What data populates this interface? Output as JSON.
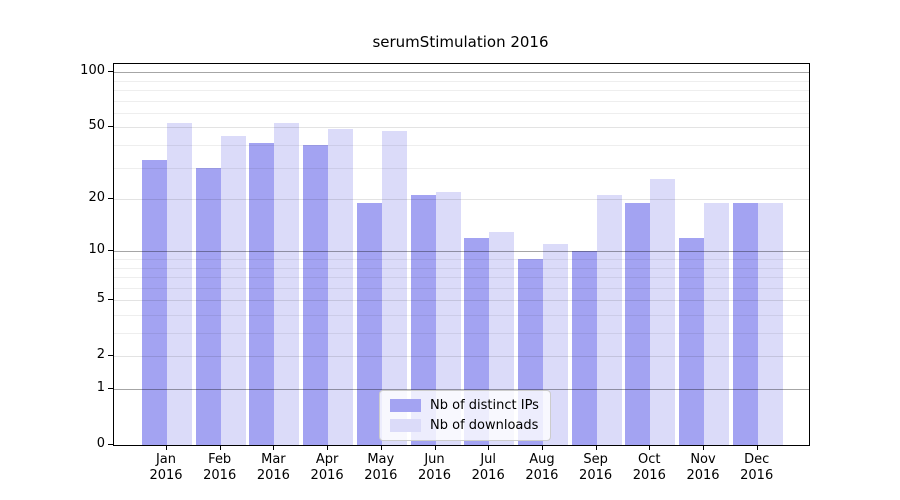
{
  "chart_data": {
    "type": "bar",
    "title": "serumStimulation 2016",
    "categories": [
      "Jan",
      "Feb",
      "Mar",
      "Apr",
      "May",
      "Jun",
      "Jul",
      "Aug",
      "Sep",
      "Oct",
      "Nov",
      "Dec"
    ],
    "x_year_label": "2016",
    "series": [
      {
        "name": "Nb of distinct IPs",
        "color": "#a3a3f2",
        "values": [
          33,
          30,
          41,
          40,
          19,
          21,
          12,
          9,
          10,
          19,
          12,
          19
        ]
      },
      {
        "name": "Nb of downloads",
        "color": "#dbdbf9",
        "values": [
          53,
          45,
          53,
          49,
          48,
          22,
          13,
          11,
          21,
          26,
          19,
          19
        ]
      }
    ],
    "y_axis": {
      "scale": "log1p",
      "tick_labels": [
        "100",
        "50",
        "20",
        "10",
        "5",
        "2",
        "1",
        "0"
      ],
      "tick_values": [
        100,
        50,
        20,
        10,
        5,
        2,
        1,
        0
      ],
      "major_gridlines": [
        1,
        10,
        100
      ],
      "sub_gridlines": [
        2,
        5,
        20,
        50
      ],
      "minor_gridlines": [
        3,
        4,
        6,
        7,
        8,
        9,
        30,
        40,
        60,
        70,
        80,
        90
      ],
      "ylim": [
        0,
        111
      ]
    },
    "legend": {
      "position": "lower center",
      "entries": [
        "Nb of distinct IPs",
        "Nb of downloads"
      ]
    },
    "grid": "on"
  }
}
